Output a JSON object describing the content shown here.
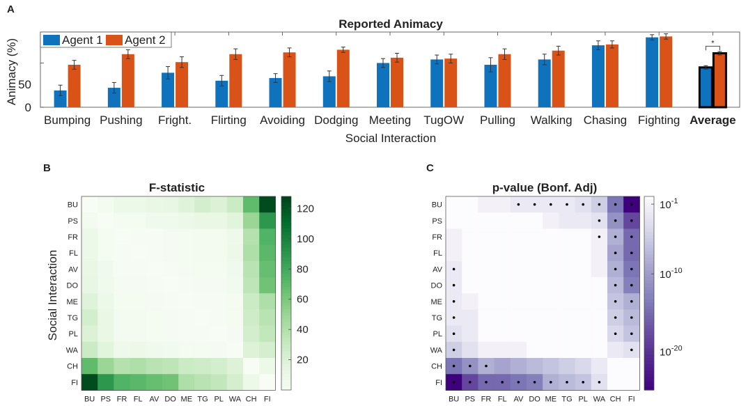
{
  "panel_letters": {
    "a": "A",
    "b": "B",
    "c": "C"
  },
  "colors": {
    "agent1": "#0E72BD",
    "agent2": "#D95318",
    "green_max": "#00441B",
    "green_min": "#F7FCF5",
    "purple_max": "#3F007D",
    "purple_min": "#FCFBFD"
  },
  "chart_data": [
    {
      "type": "bar",
      "title": "Reported Animacy",
      "xlabel": "Social Interaction",
      "ylabel": "Animacy (%)",
      "ylim": [
        0,
        85
      ],
      "yticks": [
        "0",
        "50"
      ],
      "categories": [
        "Bumping",
        "Pushing",
        "Fright.",
        "Flirting",
        "Avoiding",
        "Dodging",
        "Meeting",
        "TugOW",
        "Pulling",
        "Walking",
        "Chasing",
        "Fighting",
        "Average"
      ],
      "legend_position": "top-left",
      "series": [
        {
          "name": "Agent 1",
          "values": [
            19,
            22,
            39,
            30,
            33,
            35,
            50,
            54,
            48,
            54,
            70,
            79,
            45
          ],
          "errors": [
            6,
            6,
            7,
            6,
            5,
            6,
            5,
            5,
            8,
            6,
            5,
            3,
            2
          ]
        },
        {
          "name": "Agent 2",
          "values": [
            48,
            60,
            51,
            60,
            62,
            65,
            56,
            55,
            60,
            64,
            71,
            80,
            61
          ],
          "errors": [
            5,
            5,
            6,
            6,
            5,
            3,
            5,
            5,
            6,
            5,
            4,
            3,
            2
          ]
        }
      ],
      "significance_label": "*",
      "highlighted_category": "Average"
    },
    {
      "type": "heatmap",
      "title": "F-statistic",
      "ylabel": "Social Interaction",
      "labels": [
        "BU",
        "PS",
        "FR",
        "FL",
        "AV",
        "DO",
        "ME",
        "TG",
        "PL",
        "WA",
        "CH",
        "FI"
      ],
      "values": [
        [
          0,
          4,
          10,
          10,
          12,
          13,
          19,
          26,
          21,
          30,
          70,
          125
        ],
        [
          4,
          0,
          3,
          3,
          6,
          7,
          10,
          12,
          12,
          18,
          50,
          90
        ],
        [
          10,
          3,
          0,
          1,
          1,
          2,
          3,
          4,
          4,
          8,
          40,
          75
        ],
        [
          10,
          3,
          1,
          0,
          1,
          2,
          3,
          4,
          4,
          9,
          42,
          72
        ],
        [
          12,
          6,
          1,
          1,
          0,
          1,
          2,
          3,
          3,
          6,
          38,
          68
        ],
        [
          13,
          7,
          2,
          2,
          1,
          0,
          1,
          2,
          2,
          5,
          36,
          65
        ],
        [
          19,
          10,
          3,
          3,
          2,
          1,
          0,
          1,
          1,
          3,
          30,
          42
        ],
        [
          26,
          12,
          4,
          4,
          3,
          2,
          1,
          0,
          1,
          3,
          28,
          38
        ],
        [
          21,
          12,
          4,
          4,
          3,
          2,
          1,
          1,
          0,
          2,
          26,
          34
        ],
        [
          30,
          18,
          8,
          9,
          6,
          5,
          3,
          3,
          2,
          0,
          20,
          25
        ],
        [
          70,
          50,
          40,
          42,
          38,
          36,
          30,
          28,
          26,
          20,
          0,
          10
        ],
        [
          125,
          90,
          75,
          72,
          68,
          65,
          42,
          38,
          34,
          25,
          10,
          0
        ]
      ],
      "colorbar": {
        "min": 0,
        "max": 128,
        "ticks": [
          20,
          40,
          60,
          80,
          100,
          120
        ],
        "tick_labels": [
          "20",
          "40",
          "60",
          "80",
          "100",
          "120"
        ]
      }
    },
    {
      "type": "heatmap",
      "title": "p-value (Bonf. Adj)",
      "labels": [
        "BU",
        "PS",
        "FR",
        "FL",
        "AV",
        "DO",
        "ME",
        "TG",
        "PL",
        "WA",
        "CH",
        "FI"
      ],
      "neg_log10_p": [
        [
          0,
          0,
          1,
          1,
          2,
          2,
          2,
          2,
          3,
          5,
          14,
          26
        ],
        [
          0,
          0,
          0,
          0,
          0,
          0,
          1,
          2,
          2,
          3,
          11,
          18
        ],
        [
          1,
          0,
          0,
          0,
          0,
          0,
          0,
          0,
          0,
          1,
          8,
          15
        ],
        [
          1,
          0,
          0,
          0,
          0,
          0,
          0,
          0,
          0,
          1,
          9,
          15
        ],
        [
          2,
          0,
          0,
          0,
          0,
          0,
          0,
          0,
          0,
          1,
          8,
          14
        ],
        [
          2,
          0,
          0,
          0,
          0,
          0,
          0,
          0,
          0,
          0,
          7,
          13
        ],
        [
          2,
          1,
          0,
          0,
          0,
          0,
          0,
          0,
          0,
          0,
          6,
          8
        ],
        [
          2,
          2,
          0,
          0,
          0,
          0,
          0,
          0,
          0,
          0,
          5,
          7
        ],
        [
          3,
          2,
          0,
          0,
          0,
          0,
          0,
          0,
          0,
          0,
          4,
          6
        ],
        [
          5,
          3,
          1,
          1,
          1,
          0,
          0,
          0,
          0,
          0,
          2,
          3
        ],
        [
          14,
          11,
          8,
          9,
          8,
          7,
          6,
          5,
          4,
          2,
          0,
          0
        ],
        [
          26,
          18,
          15,
          15,
          14,
          13,
          8,
          7,
          6,
          3,
          0,
          0
        ]
      ],
      "significant": [
        [
          0,
          0,
          0,
          0,
          1,
          1,
          1,
          1,
          1,
          1,
          1,
          1
        ],
        [
          0,
          0,
          0,
          0,
          0,
          0,
          0,
          0,
          0,
          1,
          1,
          1
        ],
        [
          0,
          0,
          0,
          0,
          0,
          0,
          0,
          0,
          0,
          1,
          1,
          1
        ],
        [
          0,
          0,
          0,
          0,
          0,
          0,
          0,
          0,
          0,
          0,
          1,
          1
        ],
        [
          1,
          0,
          0,
          0,
          0,
          0,
          0,
          0,
          0,
          0,
          1,
          1
        ],
        [
          1,
          0,
          0,
          0,
          0,
          0,
          0,
          0,
          0,
          0,
          1,
          1
        ],
        [
          1,
          0,
          0,
          0,
          0,
          0,
          0,
          0,
          0,
          0,
          1,
          1
        ],
        [
          1,
          0,
          0,
          0,
          0,
          0,
          0,
          0,
          0,
          0,
          1,
          1
        ],
        [
          1,
          0,
          0,
          0,
          0,
          0,
          0,
          0,
          0,
          0,
          1,
          1
        ],
        [
          1,
          0,
          0,
          0,
          0,
          0,
          0,
          0,
          0,
          0,
          0,
          1
        ],
        [
          1,
          1,
          1,
          0,
          0,
          0,
          0,
          0,
          0,
          0,
          0,
          0
        ],
        [
          1,
          1,
          1,
          1,
          1,
          1,
          1,
          1,
          1,
          1,
          0,
          0
        ]
      ],
      "colorbar": {
        "log_min": -25,
        "log_max": 0,
        "ticks": [
          {
            "base": "10",
            "exp": "-1",
            "log": -1
          },
          {
            "base": "10",
            "exp": "-10",
            "log": -10
          },
          {
            "base": "10",
            "exp": "-20",
            "log": -20
          }
        ]
      }
    }
  ]
}
